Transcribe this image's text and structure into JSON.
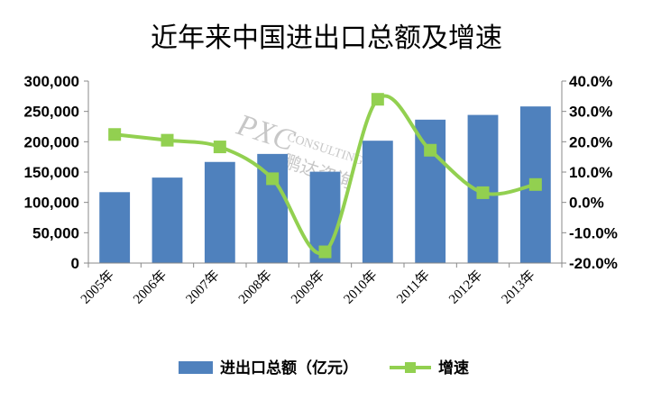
{
  "chart_data": {
    "type": "bar+line",
    "title": "近年来中国进出口总额及增速",
    "categories": [
      "2005年",
      "2006年",
      "2007年",
      "2008年",
      "2009年",
      "2010年",
      "2011年",
      "2012年",
      "2013年"
    ],
    "series": [
      {
        "name": "进出口总额（亿元）",
        "type": "bar",
        "axis": "left",
        "values": [
          116900,
          140900,
          166700,
          179900,
          150600,
          201700,
          236400,
          244200,
          258200
        ]
      },
      {
        "name": "增速",
        "type": "line",
        "axis": "right",
        "values": [
          22.4,
          20.5,
          18.3,
          7.8,
          -16.3,
          34.0,
          17.2,
          3.2,
          5.9
        ]
      }
    ],
    "y_left": {
      "min": 0,
      "max": 300000,
      "step": 50000,
      "tick_labels": [
        "0",
        "50,000",
        "100,000",
        "150,000",
        "200,000",
        "250,000",
        "300,000"
      ]
    },
    "y_right": {
      "min": -20,
      "max": 40,
      "step": 10,
      "tick_labels": [
        "-20.0%",
        "-10.0%",
        "0.0%",
        "10.0%",
        "20.0%",
        "30.0%",
        "40.0%"
      ]
    },
    "grid": false,
    "legend_position": "bottom",
    "colors": {
      "bar": "#4f81bd",
      "line": "#92d050",
      "marker": "#92d050"
    }
  },
  "watermark": {
    "logo": "PXC",
    "line1": "CONSULTING",
    "line2": "鹏达咨询"
  }
}
